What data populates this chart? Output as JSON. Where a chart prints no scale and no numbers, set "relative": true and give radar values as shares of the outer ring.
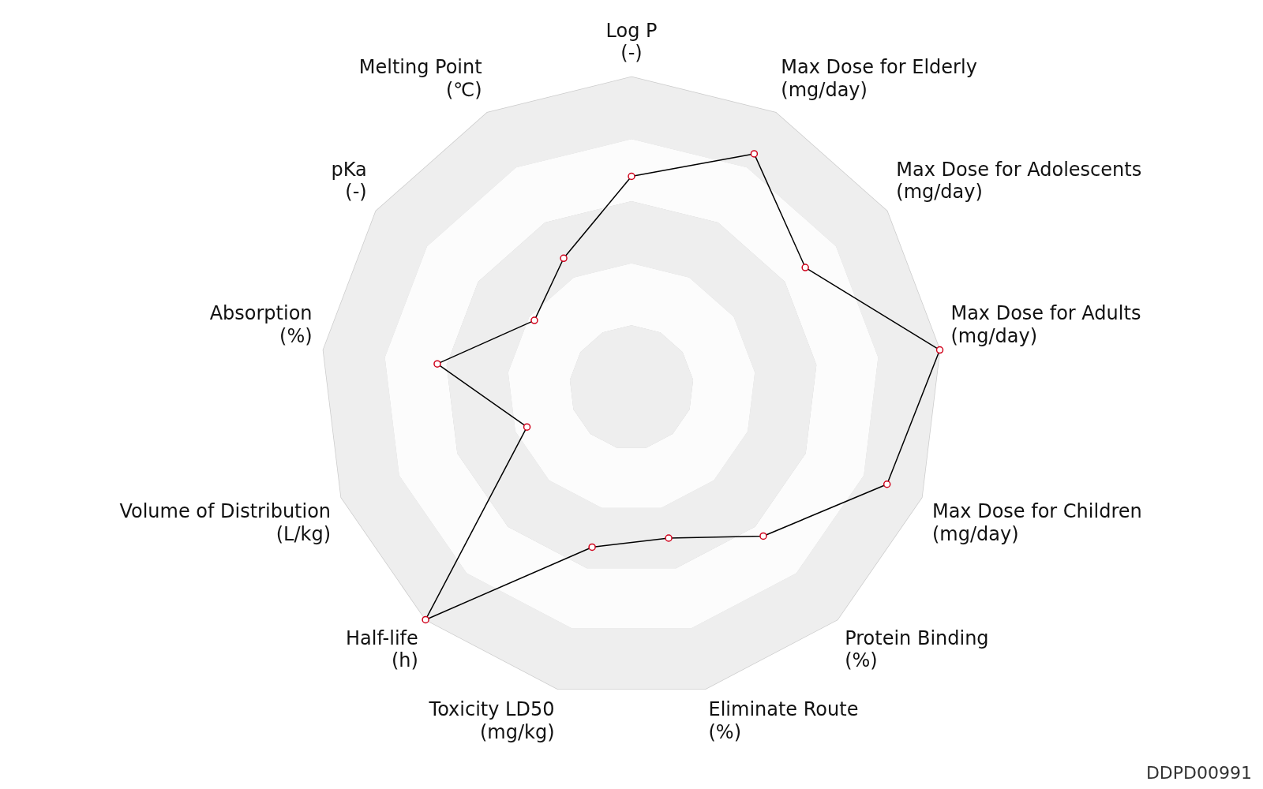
{
  "chart_data": {
    "type": "radar",
    "relative": true,
    "grid": true,
    "marker": "circle",
    "line_style": "solid",
    "legend": false,
    "categories": [
      "Log P\n(-)",
      "Max Dose for Elderly\n(mg/day)",
      "Max Dose for Adolescents\n(mg/day)",
      "Max Dose for Adults\n(mg/day)",
      "Max Dose for Children\n(mg/day)",
      "Protein Binding\n(%)",
      "Eliminate Route\n(%)",
      "Toxicity LD50\n(mg/kg)",
      "Half-life\n(h)",
      "Volume of Distribution\n(L/kg)",
      "Absorption\n(%)",
      "pKa\n(-)",
      "Melting Point\n(℃)"
    ],
    "series": [
      {
        "color": "#000000",
        "values": [
          0.68,
          0.85,
          0.68,
          1.0,
          0.88,
          0.64,
          0.5,
          0.53,
          1.0,
          0.36,
          0.63,
          0.38,
          0.47
        ]
      }
    ],
    "annotations": [
      "DDPD00991"
    ]
  }
}
